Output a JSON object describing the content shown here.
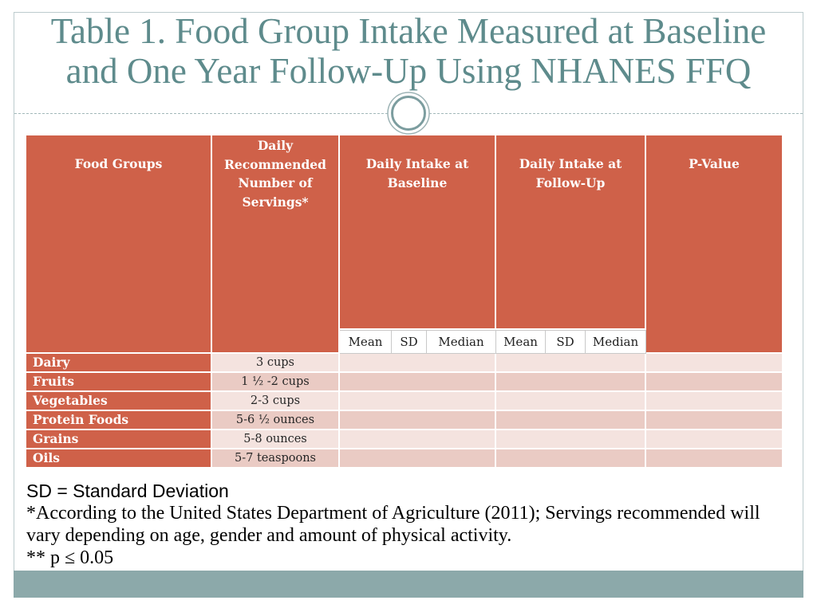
{
  "slide": {
    "title_lines": [
      "Table 1. Food Group Intake Measured at Baseline",
      "and One Year Follow-Up Using NHANES FFQ"
    ]
  },
  "table": {
    "headers": {
      "food_groups": "Food Groups",
      "servings": "Daily Recommended Number of Servings*",
      "baseline": "Daily Intake at Baseline",
      "follow_up": "Daily Intake at Follow-Up",
      "p_value": "P-Value"
    },
    "subheaders": {
      "baseline": [
        "Mean",
        "SD",
        "Median"
      ],
      "follow_up": [
        "Mean",
        "SD",
        "Median"
      ]
    },
    "rows": [
      {
        "food_group": "Dairy",
        "servings": "3 cups"
      },
      {
        "food_group": "Fruits",
        "servings": "1 ½ -2 cups"
      },
      {
        "food_group": "Vegetables",
        "servings": "2-3 cups"
      },
      {
        "food_group": "Protein Foods",
        "servings": "5-6 ½ ounces"
      },
      {
        "food_group": "Grains",
        "servings": "5-8 ounces"
      },
      {
        "food_group": "Oils",
        "servings": "5-7 teaspoons"
      }
    ]
  },
  "footnotes": {
    "abbreviation": "SD = Standard Deviation",
    "source_lines": [
      "*According to the United States Department of Agriculture (2011); Servings recommended will",
      "vary depending on age, gender and amount of physical activity."
    ],
    "significance": "** p ≤ 0.05"
  },
  "colors": {
    "header": "#cf6149",
    "row_light": "#f4e3df",
    "row_dark": "#eacbc4",
    "title": "#5e8b8c",
    "band": "#8ca9aa"
  }
}
